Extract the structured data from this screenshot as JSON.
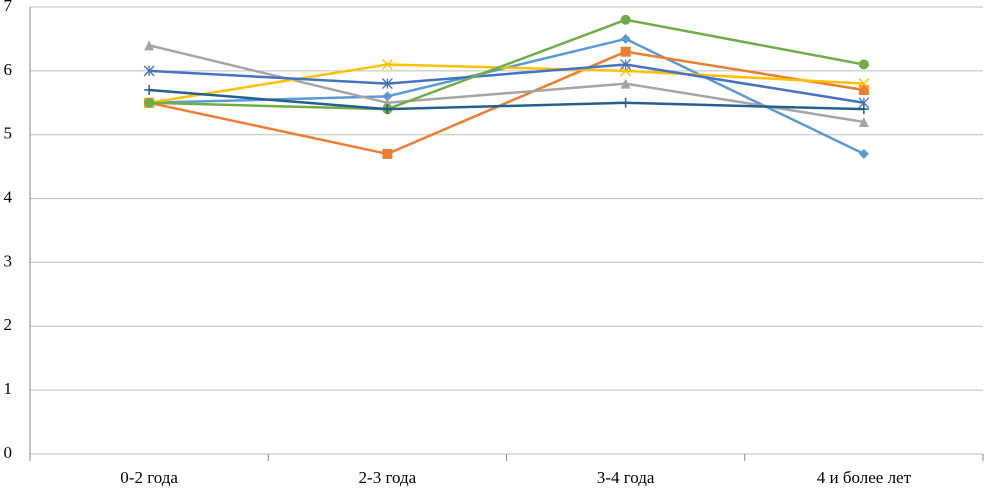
{
  "chart_data": {
    "type": "line",
    "categories": [
      "0-2 года",
      "2-3 года",
      "3-4 года",
      "4 и более лет"
    ],
    "series": [
      {
        "color": "#5b9bd5",
        "marker": "diamond",
        "values": [
          5.5,
          5.6,
          6.5,
          4.7
        ]
      },
      {
        "color": "#ed7d31",
        "marker": "square",
        "values": [
          5.5,
          4.7,
          6.3,
          5.7
        ]
      },
      {
        "color": "#a5a5a5",
        "marker": "triangle",
        "values": [
          6.4,
          5.5,
          5.8,
          5.2
        ]
      },
      {
        "color": "#ffc000",
        "marker": "x",
        "values": [
          5.5,
          6.1,
          6.0,
          5.8
        ]
      },
      {
        "color": "#4472c4",
        "marker": "star",
        "values": [
          6.0,
          5.8,
          6.1,
          5.5
        ]
      },
      {
        "color": "#70ad47",
        "marker": "circle",
        "values": [
          5.5,
          5.4,
          6.8,
          6.1
        ]
      },
      {
        "color": "#255e91",
        "marker": "plus",
        "values": [
          5.7,
          5.4,
          5.5,
          5.4
        ]
      }
    ],
    "ylim": [
      0,
      7
    ],
    "yticks": [
      0,
      1,
      2,
      3,
      4,
      5,
      6,
      7
    ],
    "grid": true
  }
}
